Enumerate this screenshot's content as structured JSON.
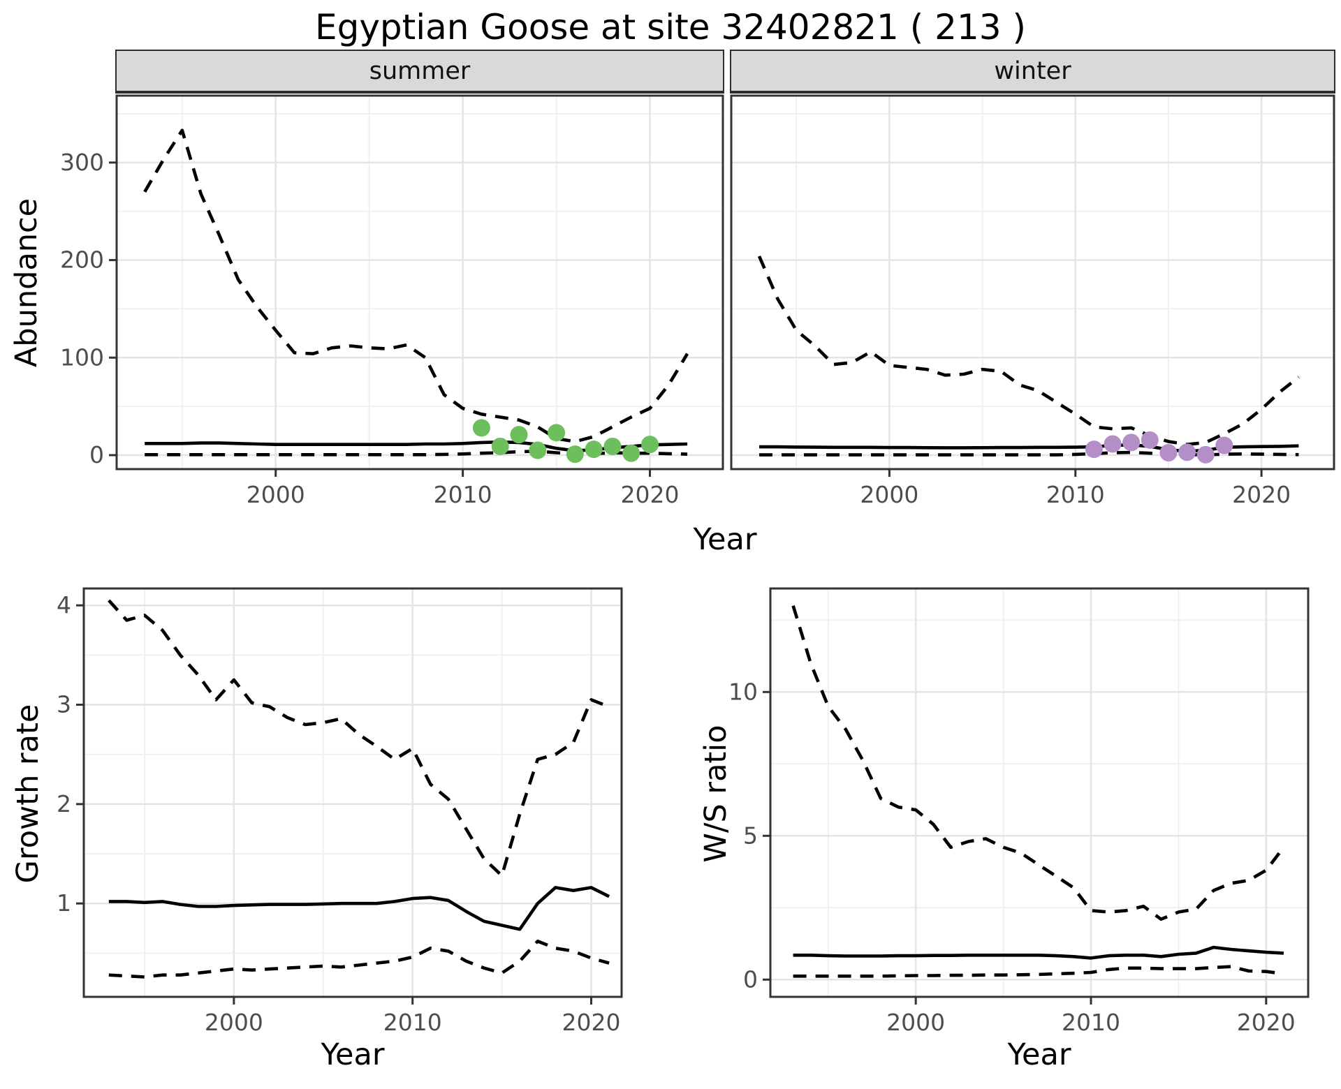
{
  "title": "Egyptian Goose at site 32402821 ( 213 )",
  "axes": {
    "x": "Year",
    "y_top": "Abundance",
    "y_growth": "Growth rate",
    "y_ws": "W/S ratio"
  },
  "colors": {
    "summer_dots": "#6dbe5c",
    "winter_dots": "#b48ec6",
    "line": "#000000",
    "strip_bg": "#d9d9d9",
    "grid_major": "#e4e4e4",
    "grid_minor": "#f0f0f0",
    "tick_label": "#4d4d4d",
    "border": "#333333"
  },
  "chart_data": [
    {
      "type": "line",
      "facet": "summer",
      "xlabel": "Year",
      "ylabel": "Abundance",
      "xlim": [
        1991.5,
        2023.9
      ],
      "ylim": [
        -14.3,
        368.6
      ],
      "xticks": [
        2000,
        2010,
        2020
      ],
      "yticks": [
        0,
        100,
        200,
        300
      ],
      "xminor": [
        1995,
        2005,
        2015
      ],
      "yminor": [
        50,
        150,
        250,
        350
      ],
      "x": [
        1993,
        1994,
        1995,
        1996,
        1997,
        1998,
        1999,
        2000,
        2001,
        2002,
        2003,
        2004,
        2005,
        2006,
        2007,
        2008,
        2009,
        2010,
        2011,
        2012,
        2013,
        2014,
        2015,
        2016,
        2017,
        2018,
        2019,
        2020,
        2021,
        2022
      ],
      "series": [
        {
          "name": "upper_ci",
          "style": "dashed",
          "values": [
            270,
            303,
            333,
            268,
            225,
            180,
            152,
            128,
            105,
            104,
            110,
            112,
            110,
            109,
            113,
            100,
            62,
            48,
            42,
            39,
            36,
            29,
            17,
            14,
            19,
            29,
            39,
            48,
            72,
            104
          ]
        },
        {
          "name": "median",
          "style": "solid",
          "values": [
            12,
            12,
            12,
            12.5,
            12.5,
            12,
            11.5,
            11,
            11,
            11,
            11,
            11,
            11,
            11,
            11,
            11.5,
            11.5,
            12,
            13,
            13.5,
            13,
            11,
            7,
            4.5,
            5.5,
            7.5,
            9,
            10.5,
            11,
            11.5
          ]
        },
        {
          "name": "lower_ci",
          "style": "dashed",
          "values": [
            0.5,
            0.5,
            0.5,
            0.5,
            0.5,
            0.5,
            0.5,
            0.5,
            0.5,
            0.5,
            0.5,
            0.5,
            0.5,
            0.5,
            0.5,
            0.5,
            0.8,
            1.2,
            2,
            2.5,
            3.5,
            4,
            2.5,
            1.2,
            1.5,
            2.5,
            2,
            2,
            1.5,
            1
          ]
        }
      ],
      "points": {
        "name": "observed_counts",
        "x": [
          2011,
          2012,
          2013,
          2014,
          2015,
          2016,
          2017,
          2018,
          2019,
          2020
        ],
        "y": [
          28,
          9,
          21,
          5,
          23,
          1,
          6,
          9,
          2,
          11
        ]
      }
    },
    {
      "type": "line",
      "facet": "winter",
      "xlabel": "Year",
      "ylabel": "Abundance",
      "xlim": [
        1991.5,
        2023.9
      ],
      "ylim": [
        -14.3,
        368.6
      ],
      "xticks": [
        2000,
        2010,
        2020
      ],
      "yticks": [
        0,
        100,
        200,
        300
      ],
      "xminor": [
        1995,
        2005,
        2015
      ],
      "yminor": [
        50,
        150,
        250,
        350
      ],
      "x": [
        1993,
        1994,
        1995,
        1996,
        1997,
        1998,
        1999,
        2000,
        2001,
        2002,
        2003,
        2004,
        2005,
        2006,
        2007,
        2008,
        2009,
        2010,
        2011,
        2012,
        2013,
        2014,
        2015,
        2016,
        2017,
        2018,
        2019,
        2020,
        2021,
        2022
      ],
      "series": [
        {
          "name": "upper_ci",
          "style": "dashed",
          "values": [
            204,
            160,
            128,
            112,
            93,
            95,
            106,
            92,
            90,
            88,
            82,
            83,
            88,
            86,
            72,
            66,
            54,
            42,
            29,
            27,
            28,
            20,
            14,
            11,
            13,
            22,
            32,
            47,
            65,
            80
          ]
        },
        {
          "name": "median",
          "style": "solid",
          "values": [
            8.5,
            8.5,
            8.3,
            8.2,
            8,
            8,
            8,
            7.8,
            7.8,
            7.7,
            7.6,
            7.6,
            7.7,
            7.8,
            7.8,
            8,
            8,
            8.2,
            8.5,
            10,
            10.5,
            9,
            5.5,
            4,
            5,
            8,
            8.5,
            8.8,
            9,
            9.5
          ]
        },
        {
          "name": "lower_ci",
          "style": "dashed",
          "values": [
            0.3,
            0.3,
            0.3,
            0.3,
            0.3,
            0.3,
            0.3,
            0.3,
            0.3,
            0.3,
            0.3,
            0.3,
            0.3,
            0.3,
            0.3,
            0.3,
            0.3,
            0.8,
            1.5,
            2.5,
            2.8,
            2,
            1,
            0.5,
            0.3,
            1,
            1.2,
            1,
            0.8,
            0.5
          ]
        }
      ],
      "points": {
        "name": "observed_counts",
        "x": [
          2011,
          2012,
          2013,
          2014,
          2015,
          2016,
          2017,
          2018
        ],
        "y": [
          6,
          11.5,
          13,
          15.5,
          2.5,
          3,
          0.5,
          10
        ]
      }
    },
    {
      "type": "line",
      "facet": "",
      "xlabel": "Year",
      "ylabel": "Growth rate",
      "xlim": [
        1991.6,
        2021.7
      ],
      "ylim": [
        0.06,
        4.17
      ],
      "xticks": [
        2000,
        2010,
        2020
      ],
      "yticks": [
        1,
        2,
        3,
        4
      ],
      "xminor": [
        1995,
        2005,
        2015
      ],
      "yminor": [
        0.5,
        1.5,
        2.5,
        3.5
      ],
      "x": [
        1993,
        1994,
        1995,
        1996,
        1997,
        1998,
        1999,
        2000,
        2001,
        2002,
        2003,
        2004,
        2005,
        2006,
        2007,
        2008,
        2009,
        2010,
        2011,
        2012,
        2013,
        2014,
        2015,
        2016,
        2017,
        2018,
        2019,
        2020,
        2021
      ],
      "series": [
        {
          "name": "upper_ci",
          "style": "dashed",
          "values": [
            4.05,
            3.85,
            3.9,
            3.75,
            3.5,
            3.3,
            3.05,
            3.25,
            3.02,
            2.98,
            2.87,
            2.8,
            2.82,
            2.86,
            2.7,
            2.58,
            2.45,
            2.56,
            2.2,
            2.05,
            1.75,
            1.45,
            1.28,
            1.9,
            2.45,
            2.5,
            2.62,
            3.05,
            2.98
          ]
        },
        {
          "name": "median",
          "style": "solid",
          "values": [
            1.02,
            1.02,
            1.01,
            1.02,
            0.99,
            0.97,
            0.97,
            0.98,
            0.985,
            0.99,
            0.99,
            0.99,
            0.995,
            1.0,
            1.0,
            1.0,
            1.02,
            1.05,
            1.06,
            1.03,
            0.92,
            0.82,
            0.78,
            0.74,
            1.0,
            1.16,
            1.13,
            1.16,
            1.07
          ]
        },
        {
          "name": "lower_ci",
          "style": "dashed",
          "values": [
            0.28,
            0.27,
            0.26,
            0.28,
            0.28,
            0.3,
            0.32,
            0.34,
            0.33,
            0.34,
            0.35,
            0.36,
            0.37,
            0.36,
            0.38,
            0.4,
            0.42,
            0.46,
            0.55,
            0.52,
            0.42,
            0.35,
            0.3,
            0.42,
            0.62,
            0.55,
            0.52,
            0.45,
            0.4
          ]
        }
      ],
      "points": null
    },
    {
      "type": "line",
      "facet": "",
      "xlabel": "Year",
      "ylabel": "W/S ratio",
      "xlim": [
        1991.7,
        2022.4
      ],
      "ylim": [
        -0.6,
        13.6
      ],
      "xticks": [
        2000,
        2010,
        2020
      ],
      "yticks": [
        0,
        5,
        10
      ],
      "xminor": [
        1995,
        2005,
        2015
      ],
      "yminor": [
        2.5,
        7.5,
        12.5
      ],
      "x": [
        1993,
        1994,
        1995,
        1996,
        1997,
        1998,
        1999,
        2000,
        2001,
        2002,
        2003,
        2004,
        2005,
        2006,
        2007,
        2008,
        2009,
        2010,
        2011,
        2012,
        2013,
        2014,
        2015,
        2016,
        2017,
        2018,
        2019,
        2020,
        2021
      ],
      "series": [
        {
          "name": "upper_ci",
          "style": "dashed",
          "values": [
            13,
            11,
            9.5,
            8.7,
            7.6,
            6.3,
            6,
            5.9,
            5.4,
            4.6,
            4.8,
            4.9,
            4.6,
            4.4,
            4,
            3.6,
            3.2,
            2.4,
            2.35,
            2.4,
            2.55,
            2.1,
            2.35,
            2.45,
            3.1,
            3.35,
            3.45,
            3.8,
            4.6
          ]
        },
        {
          "name": "median",
          "style": "solid",
          "values": [
            0.85,
            0.85,
            0.83,
            0.82,
            0.82,
            0.82,
            0.83,
            0.83,
            0.84,
            0.84,
            0.85,
            0.85,
            0.85,
            0.85,
            0.85,
            0.83,
            0.8,
            0.75,
            0.83,
            0.85,
            0.85,
            0.8,
            0.88,
            0.92,
            1.12,
            1.05,
            1.0,
            0.95,
            0.92
          ]
        },
        {
          "name": "lower_ci",
          "style": "dashed",
          "values": [
            0.12,
            0.12,
            0.12,
            0.12,
            0.12,
            0.12,
            0.13,
            0.14,
            0.14,
            0.15,
            0.15,
            0.16,
            0.16,
            0.17,
            0.18,
            0.2,
            0.22,
            0.25,
            0.35,
            0.4,
            0.4,
            0.38,
            0.38,
            0.38,
            0.42,
            0.45,
            0.3,
            0.28,
            0.2
          ]
        }
      ],
      "points": null
    }
  ]
}
